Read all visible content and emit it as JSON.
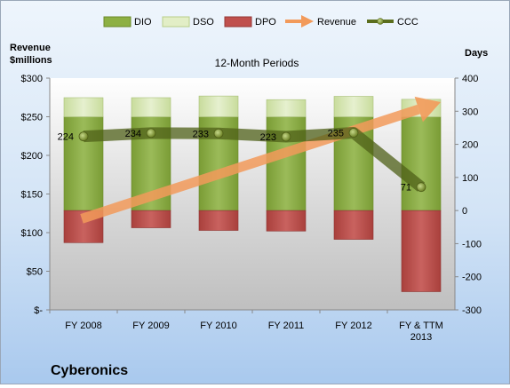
{
  "chart_data": {
    "type": "bar",
    "title": "12-Month Periods",
    "company": "Cyberonics",
    "left_axis_label": "Revenue\n$millions",
    "right_axis_label": "Days",
    "categories": [
      "FY 2008",
      "FY 2009",
      "FY 2010",
      "FY 2011",
      "FY 2012",
      "FY & TTM\n2013"
    ],
    "left_ticks": [
      "$300",
      "$250",
      "$200",
      "$150",
      "$100",
      "$50",
      "$-"
    ],
    "left_ylim": [
      0,
      300
    ],
    "right_ticks": [
      "400",
      "300",
      "200",
      "100",
      "0",
      "-100",
      "-200",
      "-300"
    ],
    "right_ylim": [
      -300,
      400
    ],
    "legend_position": "top",
    "series": [
      {
        "name": "DIO",
        "axis": "right",
        "kind": "stacked-bar",
        "values": [
          283,
          283,
          283,
          283,
          283,
          283
        ],
        "color": "#8db043"
      },
      {
        "name": "DSO",
        "axis": "right",
        "kind": "stacked-bar",
        "values": [
          58,
          58,
          63,
          52,
          62,
          53
        ],
        "color": "#d6e7b2"
      },
      {
        "name": "DPO",
        "axis": "right",
        "kind": "bar",
        "values": [
          -97,
          -52,
          -60,
          -62,
          -87,
          -245
        ],
        "color": "#c0504d"
      },
      {
        "name": "Revenue",
        "axis": "left",
        "kind": "arrow-line",
        "values": [
          118,
          145,
          167,
          190,
          218,
          262
        ],
        "color": "#f29a5a"
      },
      {
        "name": "CCC",
        "axis": "right",
        "kind": "line",
        "values": [
          224,
          234,
          233,
          223,
          235,
          71
        ],
        "color": "#5b6e1d"
      }
    ],
    "data_labels": [
      "224",
      "234",
      "233",
      "223",
      "235",
      "71"
    ]
  }
}
